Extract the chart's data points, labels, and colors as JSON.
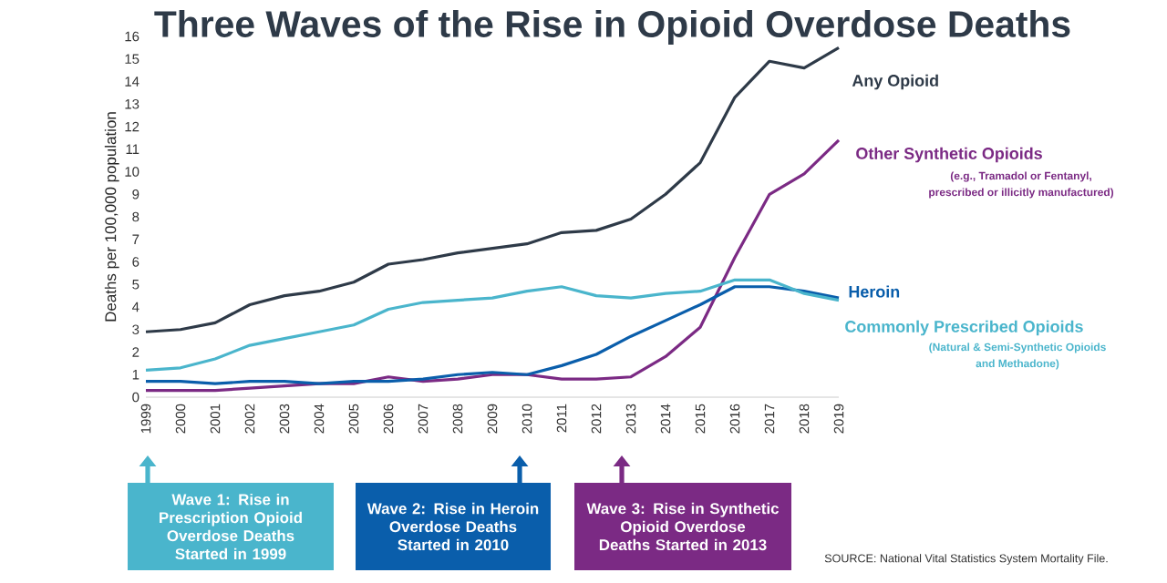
{
  "chart_data": {
    "type": "line",
    "title": "Three Waves of the Rise in Opioid Overdose Deaths",
    "ylabel": "Deaths per 100,000 population",
    "x": [
      1999,
      2000,
      2001,
      2002,
      2003,
      2004,
      2005,
      2006,
      2007,
      2008,
      2009,
      2010,
      2011,
      2012,
      2013,
      2014,
      2015,
      2016,
      2017,
      2018,
      2019
    ],
    "xlim": [
      1999,
      2019
    ],
    "xticks": [
      1999,
      2000,
      2001,
      2002,
      2003,
      2004,
      2005,
      2006,
      2007,
      2008,
      2009,
      2010,
      2011,
      2012,
      2013,
      2014,
      2015,
      2016,
      2017,
      2018,
      2019
    ],
    "ylim": [
      0,
      16
    ],
    "yticks": [
      0,
      1,
      2,
      3,
      4,
      5,
      6,
      7,
      8,
      9,
      10,
      11,
      12,
      13,
      14,
      15,
      16
    ],
    "series": [
      {
        "name": "Any Opioid",
        "color": "#2e3a48",
        "values": [
          2.9,
          3.0,
          3.3,
          4.1,
          4.5,
          4.7,
          5.1,
          5.9,
          6.1,
          6.4,
          6.6,
          6.8,
          7.3,
          7.4,
          7.9,
          9.0,
          10.4,
          13.3,
          14.9,
          14.6,
          15.5
        ]
      },
      {
        "name": "Other Synthetic Opioids",
        "color": "#7b2a84",
        "values": [
          0.3,
          0.3,
          0.3,
          0.4,
          0.5,
          0.6,
          0.6,
          0.9,
          0.7,
          0.8,
          1.0,
          1.0,
          0.8,
          0.8,
          0.9,
          1.8,
          3.1,
          6.2,
          9.0,
          9.9,
          11.4
        ]
      },
      {
        "name": "Heroin",
        "color": "#0a5eab",
        "values": [
          0.7,
          0.7,
          0.6,
          0.7,
          0.7,
          0.6,
          0.7,
          0.7,
          0.8,
          1.0,
          1.1,
          1.0,
          1.4,
          1.9,
          2.7,
          3.4,
          4.1,
          4.9,
          4.9,
          4.7,
          4.4
        ]
      },
      {
        "name": "Commonly Prescribed Opioids",
        "color": "#4ab5cc",
        "values": [
          1.2,
          1.3,
          1.7,
          2.3,
          2.6,
          2.9,
          3.2,
          3.9,
          4.2,
          4.3,
          4.4,
          4.7,
          4.9,
          4.5,
          4.4,
          4.6,
          4.7,
          5.2,
          5.2,
          4.6,
          4.3
        ]
      }
    ],
    "annotations": [
      "(e.g., Tramadol or Fentanyl,",
      "prescribed or illicitly manufactured)",
      "(Natural & Semi-Synthetic Opioids",
      "and Methadone)",
      "Wave 1: Rise in Prescription Opioid Overdose Deaths Started in 1999",
      "Wave 2: Rise in Heroin Overdose Deaths Started in 2010",
      "Wave 3: Rise in Synthetic Opioid Overdose Deaths Started in 2013",
      "SOURCE: National Vital Statistics System Mortality File."
    ]
  }
}
